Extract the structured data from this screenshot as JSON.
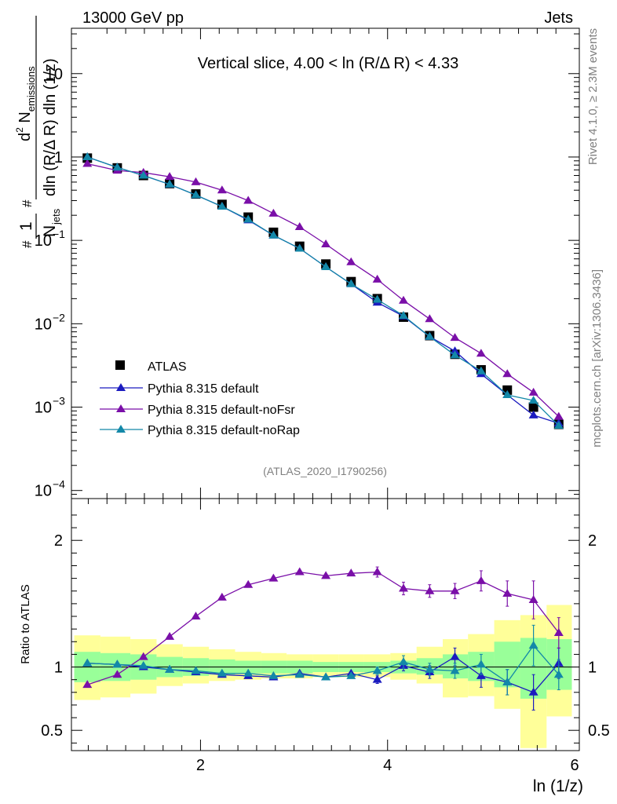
{
  "header": {
    "left": "13000 GeV pp",
    "right": "Jets"
  },
  "side_text": {
    "rivet": "Rivet 4.1.0, ≥ 2.3M events",
    "mcplots": "mcplots.cern.ch [arXiv:1306.3436]"
  },
  "chart_data": [
    {
      "type": "scatter",
      "title": "Vertical slice, 4.00 < ln (R/Δ R) < 4.33",
      "watermark": "(ATLAS_2020_I1790256)",
      "ylabel": {
        "pre": "#",
        "frac_num": "1",
        "frac_den_main": "N",
        "frac_den_sub": "jets",
        "hash2": "#",
        "numer_main": "d",
        "numer_sup": "2",
        "numer_rest": " N",
        "numer_sub": "emissions",
        "denom": "dln (R/Δ R) dln (1/z)"
      },
      "yscale": "log",
      "ylim": [
        8e-05,
        35
      ],
      "xlim": [
        0.62,
        6.05
      ],
      "yticks": [
        {
          "v": 10,
          "label": "10",
          "exp": ""
        },
        {
          "v": 1,
          "label": "1",
          "exp": ""
        },
        {
          "v": 0.1,
          "label": "10",
          "exp": "−1"
        },
        {
          "v": 0.01,
          "label": "10",
          "exp": "−2"
        },
        {
          "v": 0.001,
          "label": "10",
          "exp": "−3"
        },
        {
          "v": 0.0001,
          "label": "10",
          "exp": "−4"
        }
      ],
      "legend": {
        "position": "bottom-left",
        "entries": [
          {
            "label": "ATLAS",
            "color": "#000000",
            "marker": "square"
          },
          {
            "label": "Pythia 8.315 default",
            "color": "#1b1bbf",
            "marker": "triangle"
          },
          {
            "label": "Pythia 8.315 default-noFsr",
            "color": "#7a0fa8",
            "marker": "triangle"
          },
          {
            "label": "Pythia 8.315 default-noRap",
            "color": "#1388a8",
            "marker": "triangle"
          }
        ]
      },
      "x": [
        0.79,
        1.11,
        1.39,
        1.67,
        1.95,
        2.23,
        2.51,
        2.78,
        3.06,
        3.34,
        3.61,
        3.89,
        4.17,
        4.45,
        4.72,
        5.0,
        5.28,
        5.56,
        5.83
      ],
      "series": [
        {
          "name": "ATLAS",
          "color": "#000000",
          "values": [
            0.97,
            0.74,
            0.6,
            0.48,
            0.36,
            0.27,
            0.19,
            0.125,
            0.085,
            0.052,
            0.032,
            0.02,
            0.012,
            0.0072,
            0.0043,
            0.0028,
            0.0016,
            0.001,
            0.00062
          ]
        },
        {
          "name": "Pythia 8.315 default",
          "color": "#1b1bbf",
          "values": [
            1.0,
            0.75,
            0.6,
            0.47,
            0.35,
            0.255,
            0.175,
            0.115,
            0.08,
            0.048,
            0.03,
            0.018,
            0.0123,
            0.007,
            0.0047,
            0.0025,
            0.0014,
            0.0008,
            0.00064
          ]
        },
        {
          "name": "Pythia 8.315 default-noFsr",
          "color": "#7a0fa8",
          "values": [
            0.83,
            0.69,
            0.65,
            0.58,
            0.5,
            0.4,
            0.3,
            0.21,
            0.145,
            0.09,
            0.055,
            0.034,
            0.019,
            0.0114,
            0.0068,
            0.0044,
            0.0025,
            0.0015,
            0.00077
          ]
        },
        {
          "name": "Pythia 8.315 default-noRap",
          "color": "#1388a8",
          "values": [
            1.0,
            0.75,
            0.6,
            0.47,
            0.35,
            0.255,
            0.178,
            0.115,
            0.08,
            0.048,
            0.03,
            0.0195,
            0.0125,
            0.007,
            0.0042,
            0.0027,
            0.0014,
            0.0012,
            0.0006
          ]
        }
      ]
    },
    {
      "type": "scatter",
      "ylabel": "Ratio to ATLAS",
      "xlabel": "ln (1/z)",
      "ylim": [
        0.34,
        2.33
      ],
      "xlim": [
        0.62,
        6.05
      ],
      "xticks": [
        2,
        4,
        6
      ],
      "yticks": [
        0.5,
        1,
        2
      ],
      "reference": 1,
      "bands": {
        "edges": [
          0.65,
          0.93,
          1.25,
          1.53,
          1.81,
          2.09,
          2.37,
          2.65,
          2.92,
          3.2,
          3.48,
          3.75,
          4.03,
          4.31,
          4.59,
          4.86,
          5.14,
          5.42,
          5.7,
          5.97
        ],
        "yellow_lo": [
          0.74,
          0.76,
          0.79,
          0.85,
          0.87,
          0.89,
          0.9,
          0.91,
          0.91,
          0.92,
          0.92,
          0.92,
          0.9,
          0.87,
          0.76,
          0.77,
          0.67,
          0.36,
          0.61
        ],
        "yellow_hi": [
          1.25,
          1.24,
          1.22,
          1.18,
          1.16,
          1.14,
          1.12,
          1.11,
          1.1,
          1.1,
          1.1,
          1.1,
          1.11,
          1.16,
          1.22,
          1.26,
          1.37,
          1.41,
          1.49
        ],
        "green_lo": [
          0.88,
          0.89,
          0.9,
          0.92,
          0.93,
          0.94,
          0.95,
          0.95,
          0.95,
          0.96,
          0.96,
          0.96,
          0.95,
          0.94,
          0.91,
          0.89,
          0.84,
          0.75,
          0.82
        ],
        "green_hi": [
          1.12,
          1.11,
          1.1,
          1.08,
          1.07,
          1.06,
          1.05,
          1.05,
          1.05,
          1.04,
          1.04,
          1.04,
          1.05,
          1.07,
          1.1,
          1.12,
          1.2,
          1.23,
          1.22
        ]
      },
      "x": [
        0.79,
        1.11,
        1.39,
        1.67,
        1.95,
        2.23,
        2.51,
        2.78,
        3.06,
        3.34,
        3.61,
        3.89,
        4.17,
        4.45,
        4.72,
        5.0,
        5.28,
        5.56,
        5.83
      ],
      "series": [
        {
          "name": "Pythia 8.315 default",
          "color": "#1b1bbf",
          "values": [
            1.03,
            1.02,
            1.0,
            0.98,
            0.96,
            0.94,
            0.93,
            0.92,
            0.95,
            0.92,
            0.95,
            0.9,
            1.01,
            0.96,
            1.08,
            0.93,
            0.88,
            0.8,
            1.03
          ],
          "errors": [
            0,
            0,
            0,
            0,
            0,
            0,
            0,
            0,
            0,
            0,
            0,
            0.03,
            0.04,
            0.05,
            0.07,
            0.09,
            0.1,
            0.14,
            0.12
          ]
        },
        {
          "name": "Pythia 8.315 default-noFsr",
          "color": "#7a0fa8",
          "values": [
            0.86,
            0.94,
            1.08,
            1.24,
            1.4,
            1.55,
            1.65,
            1.7,
            1.75,
            1.72,
            1.74,
            1.75,
            1.62,
            1.6,
            1.6,
            1.68,
            1.58,
            1.53,
            1.27
          ],
          "errors": [
            0,
            0,
            0,
            0,
            0,
            0,
            0,
            0,
            0,
            0,
            0,
            0.04,
            0.05,
            0.05,
            0.06,
            0.08,
            0.1,
            0.15,
            0.12
          ]
        },
        {
          "name": "Pythia 8.315 default-noRap",
          "color": "#1388a8",
          "values": [
            1.03,
            1.02,
            1.01,
            0.98,
            0.97,
            0.95,
            0.95,
            0.93,
            0.94,
            0.92,
            0.93,
            0.97,
            1.04,
            0.98,
            0.97,
            1.02,
            0.88,
            1.17,
            0.94
          ],
          "errors": [
            0,
            0,
            0,
            0,
            0,
            0,
            0,
            0,
            0,
            0,
            0,
            0.03,
            0.05,
            0.05,
            0.06,
            0.08,
            0.1,
            0.16,
            0.12
          ]
        }
      ]
    }
  ]
}
